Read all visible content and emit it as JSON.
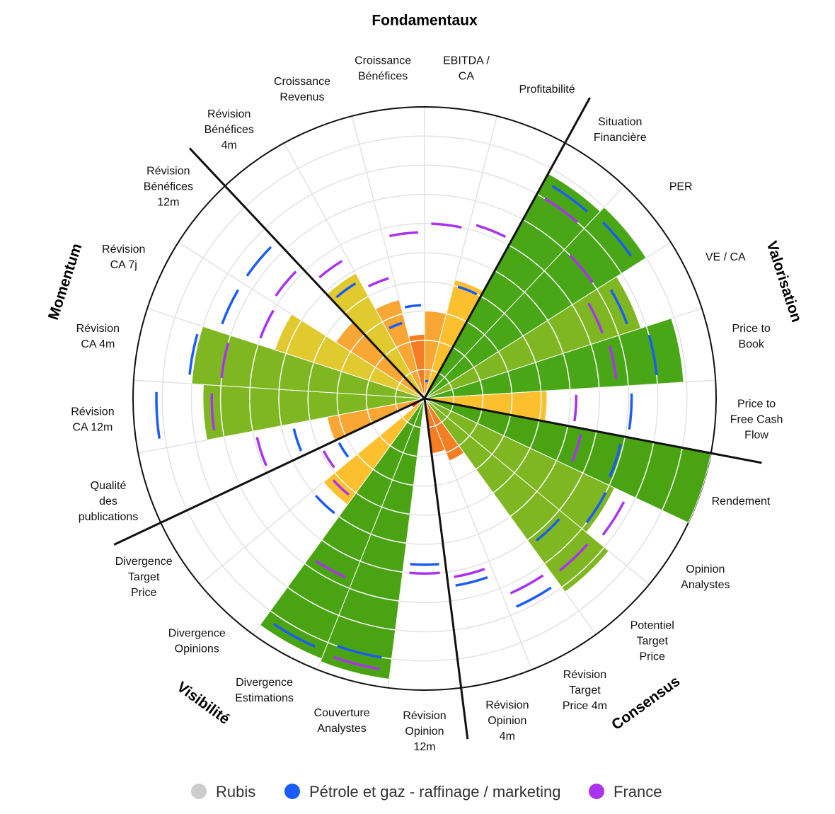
{
  "chart_data": {
    "type": "polar-bar",
    "title": "",
    "scale_max": 10,
    "axes": [
      {
        "id": "ebitda",
        "label": [
          "EBITDA /",
          "CA"
        ],
        "value": 3,
        "sector": 0.6,
        "france": 6.0
      },
      {
        "id": "profit",
        "label": [
          "Profitabilité"
        ],
        "value": 4.2,
        "sector": 4.0,
        "france": 6.2
      },
      {
        "id": "sitfin",
        "label": [
          "Situation",
          "Financière"
        ],
        "value": 8.8,
        "sector": 8.5,
        "france": 8.0
      },
      {
        "id": "per",
        "label": [
          "PER"
        ],
        "value": 9.0,
        "sector": 8.6,
        "france": 7.0
      },
      {
        "id": "veca",
        "label": [
          "VE / CA"
        ],
        "value": 7.8,
        "sector": 7.4,
        "france": 6.5
      },
      {
        "id": "ptb",
        "label": [
          "Price to",
          "Book"
        ],
        "value": 8.9,
        "sector": 8.0,
        "france": 6.6
      },
      {
        "id": "pfcf",
        "label": [
          "Price to",
          "Free Cash",
          "Flow"
        ],
        "value": 4.2,
        "sector": 7.1,
        "france": 5.2
      },
      {
        "id": "rend",
        "label": [
          "Rendement"
        ],
        "value": 10.0,
        "sector": 6.9,
        "france": 5.5
      },
      {
        "id": "opan",
        "label": [
          "Opinion",
          "Analystes"
        ],
        "value": 7.2,
        "sector": 7.0,
        "france": 7.7
      },
      {
        "id": "pott",
        "label": [
          "Potentiel",
          "Target",
          "Price"
        ],
        "value": 8.2,
        "sector": 6.2,
        "france": 7.5
      },
      {
        "id": "revtp",
        "label": [
          "Révision",
          "Target",
          "Price 4m"
        ],
        "value": 2.3,
        "sector": 7.8,
        "france": 7.3
      },
      {
        "id": "revop4",
        "label": [
          "Révision",
          "Opinion",
          "4m"
        ],
        "value": 1.9,
        "sector": 6.5,
        "france": 6.2
      },
      {
        "id": "revop12",
        "label": [
          "Révision",
          "Opinion",
          "12m"
        ],
        "value": 0.2,
        "sector": 5.7,
        "france": 6.0
      },
      {
        "id": "couv",
        "label": [
          "Couverture",
          "Analystes"
        ],
        "value": 9.7,
        "sector": 9.0,
        "france": 9.4
      },
      {
        "id": "dives",
        "label": [
          "Divergence",
          "Estimations"
        ],
        "value": 9.6,
        "sector": 9.3,
        "france": 6.7
      },
      {
        "id": "divop",
        "label": [
          "Divergence",
          "Opinions"
        ],
        "value": 4.5,
        "sector": 5.0,
        "france": 4.2
      },
      {
        "id": "divtp",
        "label": [
          "Divergence",
          "Target",
          "Price"
        ],
        "value": 0.5,
        "sector": 3.3,
        "france": 3.9
      },
      {
        "id": "qual",
        "label": [
          "Qualité",
          "des",
          "publications"
        ],
        "value": 3.4,
        "sector": 4.6,
        "france": 5.9
      },
      {
        "id": "revca12",
        "label": [
          "Révision",
          "CA 12m"
        ],
        "value": 7.6,
        "sector": 9.2,
        "france": 7.3
      },
      {
        "id": "revca4",
        "label": [
          "Révision",
          "CA 4m"
        ],
        "value": 8.0,
        "sector": 8.1,
        "france": 7.0
      },
      {
        "id": "revca7",
        "label": [
          "Révision",
          "CA 7j"
        ],
        "value": 5.4,
        "sector": 7.4,
        "france": 6.0
      },
      {
        "id": "revben12",
        "label": [
          "Révision",
          "Bénéfices",
          "12m"
        ],
        "value": 3.6,
        "sector": 7.4,
        "france": 6.2
      },
      {
        "id": "revben4",
        "label": [
          "Révision",
          "Bénéfices",
          "4m"
        ],
        "value": 4.9,
        "sector": 4.6,
        "france": 5.5
      },
      {
        "id": "croisrev",
        "label": [
          "Croissance",
          "Revenus"
        ],
        "value": 3.5,
        "sector": 2.7,
        "france": 4.3
      },
      {
        "id": "croisben",
        "label": [
          "Croissance",
          "Bénéfices"
        ],
        "value": 2.2,
        "sector": 3.2,
        "france": 5.7
      }
    ],
    "groups": [
      {
        "name": "Fondamentaux"
      },
      {
        "name": "Valorisation"
      },
      {
        "name": "Consensus"
      },
      {
        "name": "Visibilité"
      },
      {
        "name": "Momentum"
      }
    ],
    "series": [
      {
        "name": "Rubis",
        "color": "#cccccc",
        "kind": "bars"
      },
      {
        "name": "Pétrole et gaz - raffinage / marketing",
        "color": "#1a5cf5",
        "kind": "arcs"
      },
      {
        "name": "France",
        "color": "#aa33ee",
        "kind": "arcs"
      }
    ],
    "grid": true,
    "legend_position": "bottom"
  }
}
